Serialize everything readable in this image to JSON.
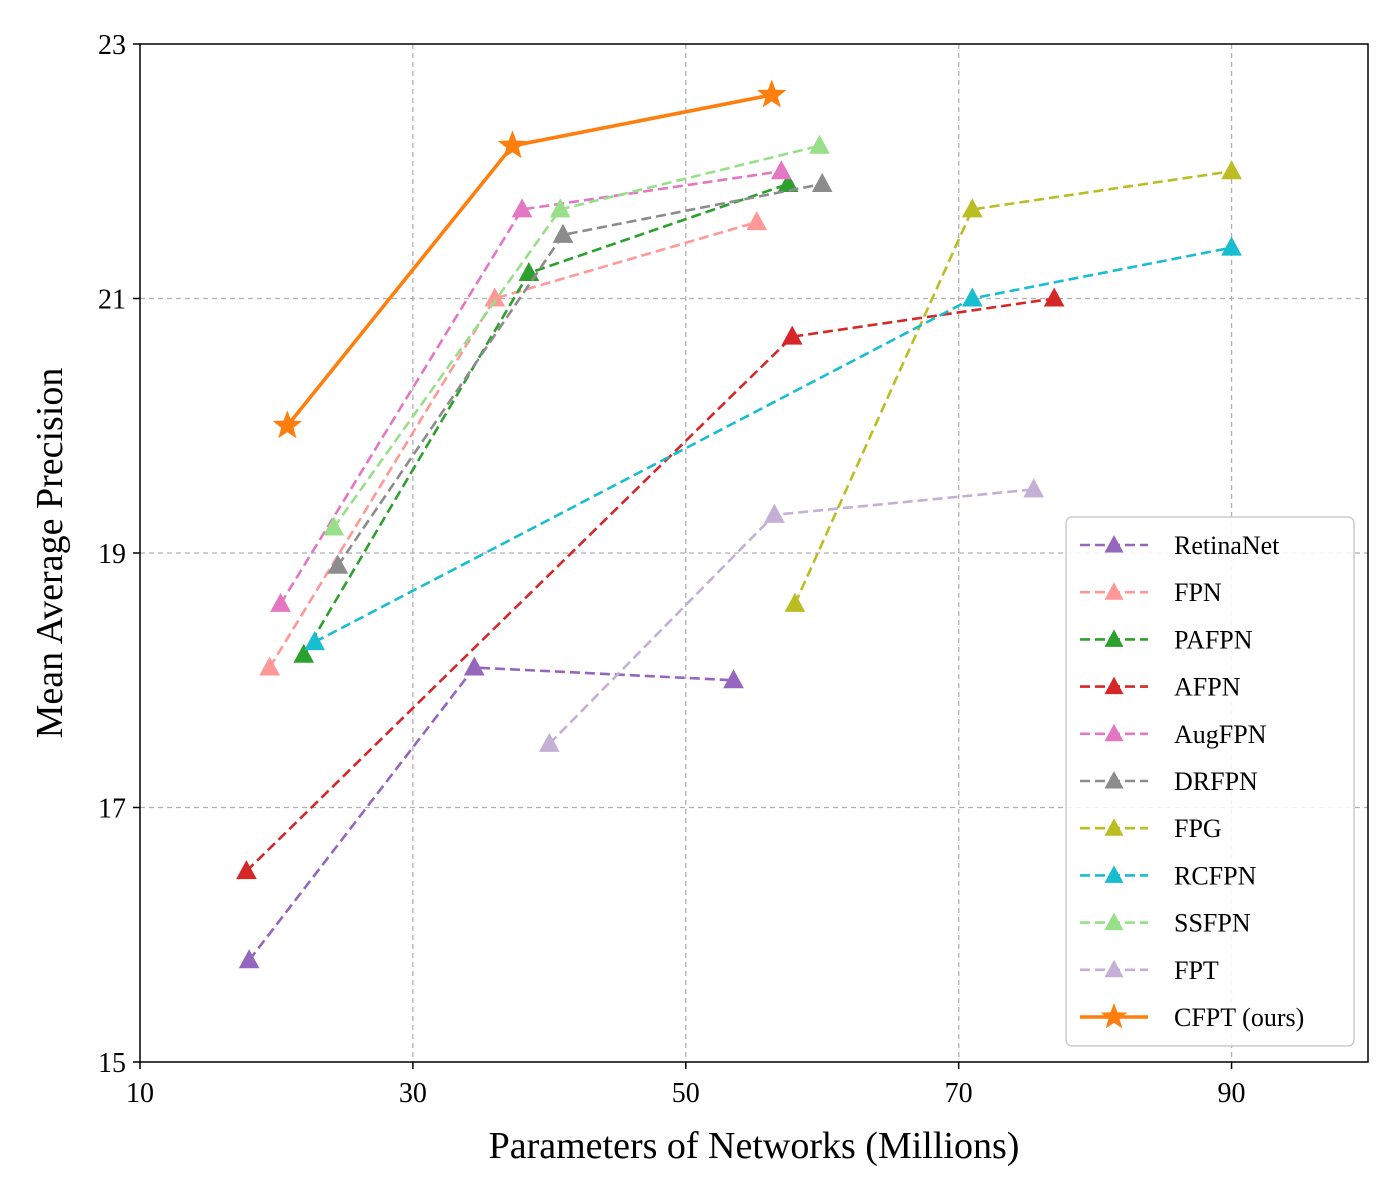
{
  "chart_data": {
    "type": "line",
    "title": "",
    "xlabel": "Parameters of Networks (Millions)",
    "ylabel": "Mean Average Precision",
    "xlim": [
      10,
      100
    ],
    "ylim": [
      15,
      23
    ],
    "xticks": [
      10,
      30,
      50,
      70,
      90
    ],
    "yticks": [
      15,
      17,
      19,
      21,
      23
    ],
    "grid": true,
    "legend_position": "lower-right",
    "series": [
      {
        "name": "RetinaNet",
        "color": "#9467bd",
        "marker": "triangle",
        "line": "dashed",
        "points": [
          [
            18.0,
            15.8
          ],
          [
            34.5,
            18.1
          ],
          [
            53.5,
            18.0
          ]
        ]
      },
      {
        "name": "FPN",
        "color": "#ff9896",
        "marker": "triangle",
        "line": "dashed",
        "points": [
          [
            19.5,
            18.1
          ],
          [
            36.0,
            21.0
          ],
          [
            55.2,
            21.6
          ]
        ]
      },
      {
        "name": "PAFPN",
        "color": "#2ca02c",
        "marker": "triangle",
        "line": "dashed",
        "points": [
          [
            22.0,
            18.2
          ],
          [
            38.5,
            21.2
          ],
          [
            57.5,
            21.9
          ]
        ]
      },
      {
        "name": "AFPN",
        "color": "#d62728",
        "marker": "triangle",
        "line": "dashed",
        "points": [
          [
            17.8,
            16.5
          ],
          [
            57.8,
            20.7
          ],
          [
            77.0,
            21.0
          ]
        ]
      },
      {
        "name": "AugFPN",
        "color": "#e377c2",
        "marker": "triangle",
        "line": "dashed",
        "points": [
          [
            20.3,
            18.6
          ],
          [
            38.0,
            21.7
          ],
          [
            57.0,
            22.0
          ]
        ]
      },
      {
        "name": "DRFPN",
        "color": "#8c8c8c",
        "marker": "triangle",
        "line": "dashed",
        "points": [
          [
            24.5,
            18.9
          ],
          [
            41.0,
            21.5
          ],
          [
            60.0,
            21.9
          ]
        ]
      },
      {
        "name": "FPG",
        "color": "#bcbd22",
        "marker": "triangle",
        "line": "dashed",
        "points": [
          [
            58.0,
            18.6
          ],
          [
            71.0,
            21.7
          ],
          [
            90.0,
            22.0
          ]
        ]
      },
      {
        "name": "RCFPN",
        "color": "#17becf",
        "marker": "triangle",
        "line": "dashed",
        "points": [
          [
            22.8,
            18.3
          ],
          [
            71.0,
            21.0
          ],
          [
            90.0,
            21.4
          ]
        ]
      },
      {
        "name": "SSFPN",
        "color": "#98df8a",
        "marker": "triangle",
        "line": "dashed",
        "points": [
          [
            24.2,
            19.2
          ],
          [
            40.8,
            21.7
          ],
          [
            59.8,
            22.2
          ]
        ]
      },
      {
        "name": "FPT",
        "color": "#c5b0d5",
        "marker": "triangle",
        "line": "dashed",
        "points": [
          [
            40.0,
            17.5
          ],
          [
            56.5,
            19.3
          ],
          [
            75.5,
            19.5
          ]
        ]
      },
      {
        "name": "CFPT (ours)",
        "color": "#ff7f0e",
        "marker": "star",
        "line": "solid",
        "points": [
          [
            20.8,
            20.0
          ],
          [
            37.3,
            22.2
          ],
          [
            56.3,
            22.6
          ]
        ]
      }
    ]
  }
}
